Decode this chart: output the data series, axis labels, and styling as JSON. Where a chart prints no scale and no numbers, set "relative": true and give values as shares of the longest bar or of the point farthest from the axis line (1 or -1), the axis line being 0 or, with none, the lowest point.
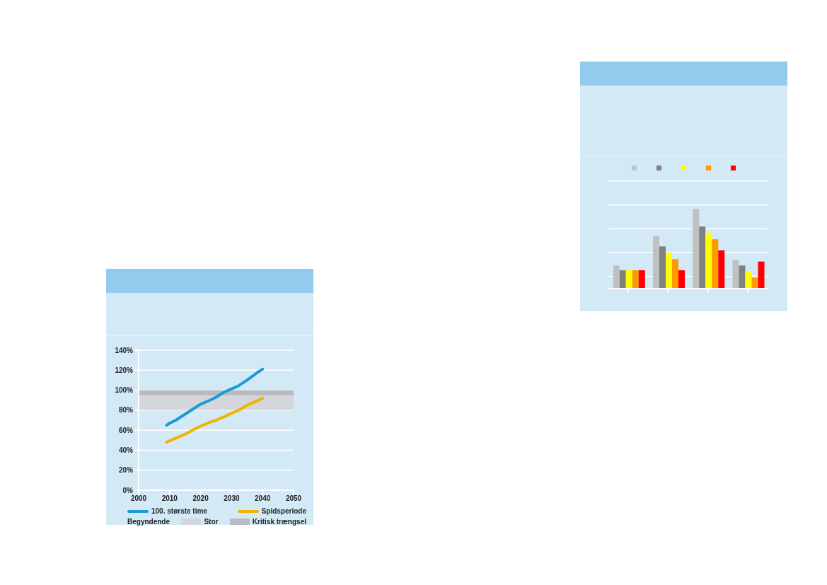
{
  "chart_data": [
    {
      "type": "line",
      "xlim": [
        2000,
        2050
      ],
      "xticks": [
        2000,
        2010,
        2020,
        2030,
        2040,
        2050
      ],
      "ylim": [
        0,
        140
      ],
      "yticks": [
        {
          "value": 0,
          "label": "0%"
        },
        {
          "value": 20,
          "label": "20%"
        },
        {
          "value": 40,
          "label": "40%"
        },
        {
          "value": 60,
          "label": "60%"
        },
        {
          "value": 80,
          "label": "80%"
        },
        {
          "value": 100,
          "label": "100%"
        },
        {
          "value": 120,
          "label": "120%"
        },
        {
          "value": 140,
          "label": "140%"
        }
      ],
      "grid": "y",
      "legend": "bottom",
      "marker": "none",
      "line_style": "solid",
      "series": [
        {
          "name": "100. største time",
          "color": "#1a9bd7",
          "x": [
            2009,
            2010,
            2012,
            2015,
            2018,
            2020,
            2023,
            2025,
            2027,
            2029,
            2032,
            2035,
            2038,
            2040
          ],
          "values": [
            65,
            67,
            70,
            76,
            82,
            86,
            90,
            93,
            97,
            100,
            104,
            110,
            117,
            121
          ]
        },
        {
          "name": "Spidsperiode",
          "color": "#f0b400",
          "x": [
            2009,
            2012,
            2015,
            2018,
            2020,
            2023,
            2025,
            2028,
            2030,
            2033,
            2035,
            2038,
            2040
          ],
          "values": [
            48,
            52,
            56,
            61,
            64,
            68,
            70,
            74,
            77,
            81,
            85,
            89,
            92
          ]
        }
      ],
      "bands": [
        {
          "axis": "y",
          "from": 80,
          "to": 95,
          "label": "Stor",
          "color": "#d3d6db"
        },
        {
          "axis": "y",
          "from": 95,
          "to": 100,
          "label": "Kritisk trængsel",
          "color": "#b8bbc1"
        }
      ],
      "annotations": [
        "Begyndende"
      ]
    },
    {
      "type": "bar",
      "relative": true,
      "categories": [
        null,
        null,
        null,
        null
      ],
      "grid": "y",
      "legend": "top",
      "series": [
        {
          "color": "#c0c0c0",
          "values": [
            0.29,
            0.66,
            1,
            0.36
          ]
        },
        {
          "color": "#808080",
          "values": [
            0.23,
            0.53,
            0.78,
            0.29
          ]
        },
        {
          "color": "#ffff00",
          "values": [
            0.23,
            0.45,
            0.7,
            0.21
          ]
        },
        {
          "color": "#ff9900",
          "values": [
            0.23,
            0.37,
            0.62,
            0.14
          ]
        },
        {
          "color": "#ff0000",
          "values": [
            0.23,
            0.23,
            0.48,
            0.34
          ]
        }
      ]
    }
  ]
}
